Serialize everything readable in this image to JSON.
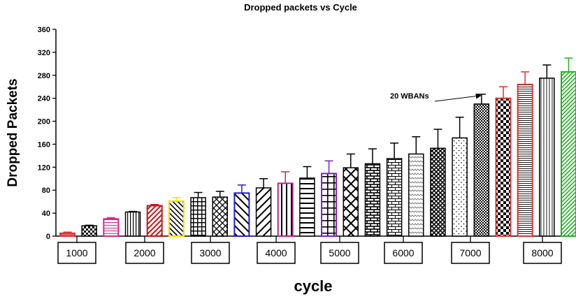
{
  "chart_data": {
    "type": "bar",
    "title": "Dropped packets vs Cycle",
    "xlabel": "cycle",
    "ylabel": "Dropped Packets",
    "ylim": [
      0,
      360
    ],
    "yticks": [
      "0",
      "40",
      "80",
      "120",
      "160",
      "200",
      "240",
      "280",
      "320",
      "360"
    ],
    "categories": [
      "1000",
      "2000",
      "3000",
      "4000",
      "5000",
      "6000",
      "7000",
      "8000"
    ],
    "grid": false,
    "legend": "none",
    "annotation": {
      "text": "20 WBANs",
      "target_bar": 22
    },
    "bars": [
      {
        "value": 5,
        "error": 2,
        "pattern": "solid-red",
        "border": "#e03030"
      },
      {
        "value": 18,
        "error": 1,
        "pattern": "checker-small",
        "border": "#000000"
      },
      {
        "value": 30,
        "error": 2,
        "pattern": "hlines",
        "border": "#e0208a"
      },
      {
        "value": 42,
        "error": 1,
        "pattern": "vlines",
        "border": "#000000"
      },
      {
        "value": 53,
        "error": 2,
        "pattern": "diag-red",
        "border": "#c01818"
      },
      {
        "value": 61,
        "error": 6,
        "pattern": "diag-back",
        "border": "#f0e000"
      },
      {
        "value": 67,
        "error": 9,
        "pattern": "grid",
        "border": "#000000"
      },
      {
        "value": 68,
        "error": 10,
        "pattern": "diag-cross",
        "border": "#000000"
      },
      {
        "value": 75,
        "error": 14,
        "pattern": "diag-back-wide",
        "border": "#2020d0"
      },
      {
        "value": 84,
        "error": 16,
        "pattern": "diag-wide",
        "border": "#000000"
      },
      {
        "value": 92,
        "error": 20,
        "pattern": "vlines-wide",
        "border": "#c0208a"
      },
      {
        "value": 101,
        "error": 20,
        "pattern": "hlines-wide",
        "border": "#000000"
      },
      {
        "value": 109,
        "error": 22,
        "pattern": "grid-wide",
        "border": "#8020c0"
      },
      {
        "value": 119,
        "error": 24,
        "pattern": "xcross",
        "border": "#000000"
      },
      {
        "value": 126,
        "error": 26,
        "pattern": "brick",
        "border": "#000000"
      },
      {
        "value": 135,
        "error": 27,
        "pattern": "brick-light",
        "border": "#000000"
      },
      {
        "value": 143,
        "error": 30,
        "pattern": "wave",
        "border": "#000000"
      },
      {
        "value": 153,
        "error": 33,
        "pattern": "zigzag",
        "border": "#000000"
      },
      {
        "value": 171,
        "error": 36,
        "pattern": "dots",
        "border": "#000000"
      },
      {
        "value": 230,
        "error": 17,
        "pattern": "checker-fine",
        "border": "#000000"
      },
      {
        "value": 240,
        "error": 20,
        "pattern": "checker-big",
        "border": "#e03030"
      },
      {
        "value": 264,
        "error": 22,
        "pattern": "hlines-fine",
        "border": "#e03030"
      },
      {
        "value": 275,
        "error": 23,
        "pattern": "vlines-fine",
        "border": "#000000"
      },
      {
        "value": 286,
        "error": 24,
        "pattern": "diag-green",
        "border": "#20b020"
      }
    ]
  }
}
